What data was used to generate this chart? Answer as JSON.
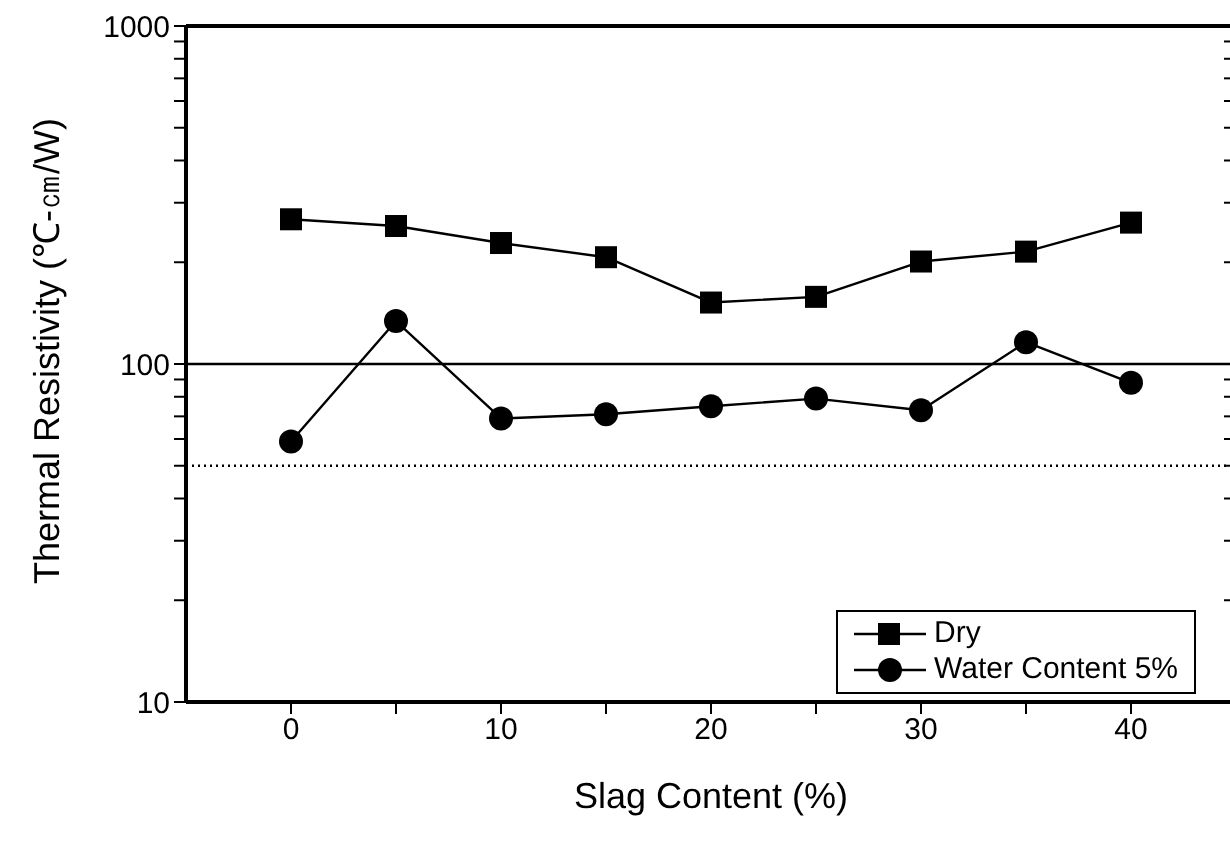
{
  "chart_data": {
    "type": "line",
    "xlabel": "Slag Content (%)",
    "ylabel": "Thermal Resistivity (℃-㎝/W)",
    "x": [
      0,
      5,
      10,
      15,
      20,
      25,
      30,
      35,
      40
    ],
    "series": [
      {
        "name": "Dry",
        "color": "#000000",
        "marker": "square",
        "values": [
          268,
          256,
          228,
          207,
          152,
          158,
          201,
          215,
          262
        ]
      },
      {
        "name": "Water Content 5%",
        "color": "#000000",
        "marker": "circle",
        "values": [
          59,
          134,
          69,
          71,
          75,
          79,
          73,
          116,
          88
        ]
      }
    ],
    "xlim": [
      -5,
      45
    ],
    "xticks": [
      0,
      {
        "value": 5,
        "label": null
      },
      10,
      {
        "value": 15,
        "label": null
      },
      20,
      {
        "value": 25,
        "label": null
      },
      30,
      {
        "value": 35,
        "label": null
      },
      40
    ],
    "ylim": [
      10,
      1000
    ],
    "yticks": [
      10,
      {
        "value": 20,
        "label": null
      },
      {
        "value": 30,
        "label": null
      },
      {
        "value": 40,
        "label": null
      },
      {
        "value": 50,
        "label": null
      },
      {
        "value": 60,
        "label": null
      },
      {
        "value": 70,
        "label": null
      },
      {
        "value": 80,
        "label": null
      },
      {
        "value": 90,
        "label": null
      },
      100,
      {
        "value": 200,
        "label": null
      },
      {
        "value": 300,
        "label": null
      },
      {
        "value": 400,
        "label": null
      },
      {
        "value": 500,
        "label": null
      },
      {
        "value": 600,
        "label": null
      },
      {
        "value": 700,
        "label": null
      },
      {
        "value": 800,
        "label": null
      },
      {
        "value": 900,
        "label": null
      },
      1000
    ],
    "log": "y",
    "grid": false,
    "legend": "bottom right",
    "line_style": "solid",
    "ref_lines": [
      {
        "axis": "y",
        "value": 100,
        "color": "#000000",
        "line_style": "solid"
      },
      {
        "axis": "y",
        "value": 50,
        "color": "#000000",
        "line_style": "dotted"
      }
    ]
  }
}
